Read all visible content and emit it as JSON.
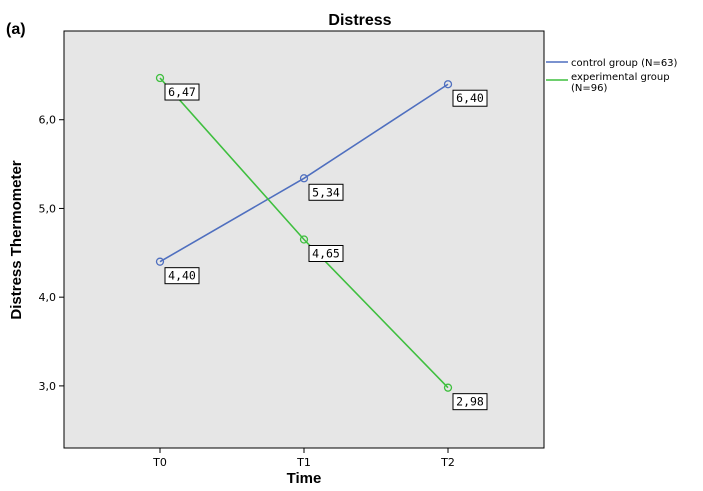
{
  "panel_label": "(a)",
  "colors": {
    "plot_background": "#e6e6e6",
    "control": "#4f6fbf",
    "experimental": "#3fbf3f",
    "label_box_border": "#000000"
  },
  "chart_data": {
    "type": "line",
    "title": "Distress",
    "xlabel": "Time",
    "ylabel": "Distress Thermometer",
    "categories": [
      "T0",
      "T1",
      "T2"
    ],
    "ylim": [
      2.3,
      7.0
    ],
    "y_ticks": [
      3.0,
      4.0,
      5.0,
      6.0
    ],
    "y_tick_labels": [
      "3,0",
      "4,0",
      "5,0",
      "6,0"
    ],
    "grid": false,
    "legend_position": "right",
    "series": [
      {
        "name": "control group (N=63)",
        "color": "#4f6fbf",
        "values": [
          4.4,
          5.34,
          6.4
        ],
        "data_labels": [
          "4,40",
          "5,34",
          "6,40"
        ]
      },
      {
        "name": "experimental group (N=96)",
        "name_lines": [
          "experimental group",
          "(N=96)"
        ],
        "color": "#3fbf3f",
        "values": [
          6.47,
          4.65,
          2.98
        ],
        "data_labels": [
          "6,47",
          "4,65",
          "2,98"
        ]
      }
    ]
  }
}
